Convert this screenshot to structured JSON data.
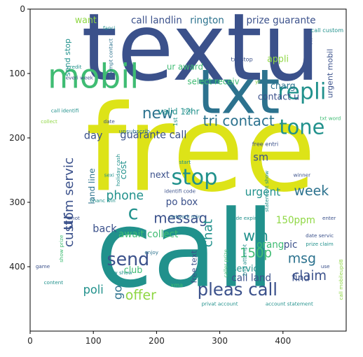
{
  "chart_data": {
    "type": "wordcloud",
    "xlim": [
      0,
      500
    ],
    "ylim": [
      500,
      0
    ],
    "x_ticks": [
      0,
      100,
      200,
      300,
      400
    ],
    "y_ticks": [
      0,
      100,
      200,
      300,
      400
    ],
    "colors": {
      "dark_purple": "#472a7a",
      "indigo": "#3b518b",
      "blue": "#2c728e",
      "teal": "#21918c",
      "green": "#3fbc73",
      "lime": "#8fd744",
      "yellow": "#dde318"
    },
    "words": [
      {
        "text": "textu",
        "x": 270,
        "y": 70,
        "size": 145,
        "color": "indigo",
        "rotate": 0
      },
      {
        "text": "free",
        "x": 270,
        "y": 230,
        "size": 185,
        "color": "yellow",
        "rotate": 0
      },
      {
        "text": "call",
        "x": 245,
        "y": 385,
        "size": 165,
        "color": "teal",
        "rotate": 0
      },
      {
        "text": "txt",
        "x": 330,
        "y": 135,
        "size": 95,
        "color": "blue",
        "rotate": 0
      },
      {
        "text": "mobil",
        "x": 100,
        "y": 108,
        "size": 52,
        "color": "green",
        "rotate": 0
      },
      {
        "text": "repli",
        "x": 430,
        "y": 130,
        "size": 35,
        "color": "teal",
        "rotate": 0
      },
      {
        "text": "tone",
        "x": 430,
        "y": 185,
        "size": 32,
        "color": "teal",
        "rotate": 0
      },
      {
        "text": "stop",
        "x": 260,
        "y": 263,
        "size": 34,
        "color": "teal",
        "rotate": 0
      },
      {
        "text": "new",
        "x": 202,
        "y": 163,
        "size": 24,
        "color": "blue",
        "rotate": 0
      },
      {
        "text": "tri contact",
        "x": 330,
        "y": 175,
        "size": 22,
        "color": "blue",
        "rotate": 0
      },
      {
        "text": "guarante call",
        "x": 195,
        "y": 196,
        "size": 16,
        "color": "indigo",
        "rotate": 0
      },
      {
        "text": "messag",
        "x": 238,
        "y": 326,
        "size": 22,
        "color": "indigo",
        "rotate": 0
      },
      {
        "text": "c",
        "x": 163,
        "y": 318,
        "size": 30,
        "color": "teal",
        "rotate": 0
      },
      {
        "text": "phone",
        "x": 150,
        "y": 290,
        "size": 19,
        "color": "teal",
        "rotate": 0
      },
      {
        "text": "send",
        "x": 155,
        "y": 390,
        "size": 28,
        "color": "indigo",
        "rotate": 0
      },
      {
        "text": "pleas call",
        "x": 328,
        "y": 437,
        "size": 27,
        "color": "indigo",
        "rotate": 0
      },
      {
        "text": "offer",
        "x": 175,
        "y": 445,
        "size": 21,
        "color": "lime",
        "rotate": 0
      },
      {
        "text": "poli",
        "x": 100,
        "y": 437,
        "size": 18,
        "color": "teal",
        "rotate": 0
      },
      {
        "text": "go",
        "x": 140,
        "y": 440,
        "size": 18,
        "color": "blue",
        "rotate": -90
      },
      {
        "text": "club",
        "x": 163,
        "y": 406,
        "size": 14,
        "color": "green",
        "rotate": 0
      },
      {
        "text": "ur",
        "x": 60,
        "y": 330,
        "size": 26,
        "color": "indigo",
        "rotate": -90
      },
      {
        "text": "custom servic",
        "x": 62,
        "y": 300,
        "size": 20,
        "color": "indigo",
        "rotate": -90
      },
      {
        "text": "land line",
        "x": 98,
        "y": 275,
        "size": 13,
        "color": "blue",
        "rotate": -90
      },
      {
        "text": "send stop",
        "x": 60,
        "y": 75,
        "size": 12,
        "color": "teal",
        "rotate": -90
      },
      {
        "text": "cost",
        "x": 148,
        "y": 250,
        "size": 14,
        "color": "teal",
        "rotate": -90
      },
      {
        "text": "day",
        "x": 100,
        "y": 197,
        "size": 16,
        "color": "indigo",
        "rotate": 0
      },
      {
        "text": "back",
        "x": 118,
        "y": 342,
        "size": 16,
        "color": "indigo",
        "rotate": 0
      },
      {
        "text": "await collect",
        "x": 187,
        "y": 350,
        "size": 15,
        "color": "green",
        "rotate": 0
      },
      {
        "text": "chat",
        "x": 282,
        "y": 348,
        "size": 20,
        "color": "teal",
        "rotate": -90
      },
      {
        "text": "win",
        "x": 357,
        "y": 353,
        "size": 23,
        "color": "teal",
        "rotate": 0
      },
      {
        "text": "150p",
        "x": 357,
        "y": 380,
        "size": 20,
        "color": "green",
        "rotate": 0
      },
      {
        "text": "msg",
        "x": 430,
        "y": 388,
        "size": 21,
        "color": "blue",
        "rotate": 0
      },
      {
        "text": "claim",
        "x": 442,
        "y": 415,
        "size": 20,
        "color": "indigo",
        "rotate": 0
      },
      {
        "text": "week",
        "x": 445,
        "y": 283,
        "size": 21,
        "color": "blue",
        "rotate": 0
      },
      {
        "text": "urgent",
        "x": 368,
        "y": 285,
        "size": 17,
        "color": "teal",
        "rotate": 0
      },
      {
        "text": "sm",
        "x": 365,
        "y": 231,
        "size": 16,
        "color": "indigo",
        "rotate": 0
      },
      {
        "text": "po box",
        "x": 240,
        "y": 300,
        "size": 15,
        "color": "indigo",
        "rotate": 0
      },
      {
        "text": "next",
        "x": 205,
        "y": 258,
        "size": 14,
        "color": "indigo",
        "rotate": 0
      },
      {
        "text": "150ppm",
        "x": 420,
        "y": 328,
        "size": 15,
        "color": "lime",
        "rotate": 0
      },
      {
        "text": "orang",
        "x": 380,
        "y": 366,
        "size": 15,
        "color": "green",
        "rotate": 0
      },
      {
        "text": "pic",
        "x": 412,
        "y": 366,
        "size": 15,
        "color": "indigo",
        "rotate": 0
      },
      {
        "text": "find",
        "x": 428,
        "y": 418,
        "size": 15,
        "color": "indigo",
        "rotate": 0
      },
      {
        "text": "servic",
        "x": 340,
        "y": 404,
        "size": 14,
        "color": "teal",
        "rotate": 0
      },
      {
        "text": "call land",
        "x": 350,
        "y": 418,
        "size": 15,
        "color": "indigo",
        "rotate": 0
      },
      {
        "text": "free text",
        "x": 260,
        "y": 400,
        "size": 12,
        "color": "indigo",
        "rotate": -90
      },
      {
        "text": "call landlin",
        "x": 200,
        "y": 18,
        "size": 15,
        "color": "indigo",
        "rotate": 0
      },
      {
        "text": "rington",
        "x": 280,
        "y": 18,
        "size": 15,
        "color": "blue",
        "rotate": 0
      },
      {
        "text": "prize guarante",
        "x": 397,
        "y": 18,
        "size": 15,
        "color": "indigo",
        "rotate": 0
      },
      {
        "text": "want",
        "x": 88,
        "y": 18,
        "size": 14,
        "color": "lime",
        "rotate": 0
      },
      {
        "text": "hi",
        "x": 443,
        "y": 50,
        "size": 12,
        "color": "indigo",
        "rotate": -90
      },
      {
        "text": "call custom",
        "x": 470,
        "y": 33,
        "size": 9,
        "color": "teal",
        "rotate": 0
      },
      {
        "text": "ur award",
        "x": 245,
        "y": 90,
        "size": 13,
        "color": "green",
        "rotate": 0
      },
      {
        "text": "appli",
        "x": 392,
        "y": 78,
        "size": 14,
        "color": "lime",
        "rotate": 0
      },
      {
        "text": "charg",
        "x": 400,
        "y": 120,
        "size": 14,
        "color": "blue",
        "rotate": 0
      },
      {
        "text": "contact u",
        "x": 393,
        "y": 137,
        "size": 14,
        "color": "indigo",
        "rotate": 0
      },
      {
        "text": "urgent mobil",
        "x": 475,
        "y": 100,
        "size": 12,
        "color": "indigo",
        "rotate": -90
      },
      {
        "text": "select receiv",
        "x": 290,
        "y": 113,
        "size": 13,
        "color": "green",
        "rotate": 0
      },
      {
        "text": "valid 12hr",
        "x": 235,
        "y": 160,
        "size": 13,
        "color": "teal",
        "rotate": 0
      },
      {
        "text": "txt stop",
        "x": 335,
        "y": 78,
        "size": 9,
        "color": "indigo",
        "rotate": 0
      },
      {
        "text": "fanci",
        "x": 125,
        "y": 30,
        "size": 8,
        "color": "teal",
        "rotate": 0
      },
      {
        "text": "credit",
        "x": 70,
        "y": 90,
        "size": 8,
        "color": "teal",
        "rotate": 0
      },
      {
        "text": "everi week",
        "x": 78,
        "y": 107,
        "size": 8,
        "color": "indigo",
        "rotate": 0
      },
      {
        "text": "attempt contact",
        "x": 128,
        "y": 78,
        "size": 8,
        "color": "blue",
        "rotate": -90
      },
      {
        "text": "call identifi",
        "x": 55,
        "y": 158,
        "size": 8,
        "color": "teal",
        "rotate": 0
      },
      {
        "text": "collect",
        "x": 30,
        "y": 175,
        "size": 8,
        "color": "lime",
        "rotate": 0
      },
      {
        "text": "date",
        "x": 125,
        "y": 175,
        "size": 8,
        "color": "indigo",
        "rotate": 0
      },
      {
        "text": "unsubscrib",
        "x": 165,
        "y": 190,
        "size": 9,
        "color": "blue",
        "rotate": 0
      },
      {
        "text": "1st",
        "x": 230,
        "y": 175,
        "size": 9,
        "color": "teal",
        "rotate": -90
      },
      {
        "text": "top",
        "x": 250,
        "y": 158,
        "size": 8,
        "color": "teal",
        "rotate": 0
      },
      {
        "text": "yr",
        "x": 360,
        "y": 113,
        "size": 8,
        "color": "lime",
        "rotate": 0
      },
      {
        "text": "txt word",
        "x": 475,
        "y": 170,
        "size": 8,
        "color": "green",
        "rotate": 0
      },
      {
        "text": "free entri",
        "x": 372,
        "y": 210,
        "size": 9,
        "color": "indigo",
        "rotate": 0
      },
      {
        "text": "start",
        "x": 245,
        "y": 238,
        "size": 8,
        "color": "teal",
        "rotate": 0
      },
      {
        "text": "sexi",
        "x": 125,
        "y": 258,
        "size": 8,
        "color": "teal",
        "rotate": 0
      },
      {
        "text": "holiday cash",
        "x": 140,
        "y": 250,
        "size": 8,
        "color": "teal",
        "rotate": -90
      },
      {
        "text": "winner",
        "x": 430,
        "y": 258,
        "size": 8,
        "color": "indigo",
        "rotate": 0
      },
      {
        "text": "statement show",
        "x": 375,
        "y": 283,
        "size": 8,
        "color": "teal",
        "rotate": -90
      },
      {
        "text": "chanc win",
        "x": 115,
        "y": 298,
        "size": 8,
        "color": "teal",
        "rotate": 0
      },
      {
        "text": "identifi code",
        "x": 237,
        "y": 283,
        "size": 8,
        "color": "indigo",
        "rotate": 0
      },
      {
        "text": "network min",
        "x": 245,
        "y": 323,
        "size": 8,
        "color": "blue",
        "rotate": 0
      },
      {
        "text": "hot",
        "x": 72,
        "y": 325,
        "size": 8,
        "color": "indigo",
        "rotate": 0
      },
      {
        "text": "code expir",
        "x": 337,
        "y": 325,
        "size": 8,
        "color": "teal",
        "rotate": 0
      },
      {
        "text": "enter",
        "x": 473,
        "y": 325,
        "size": 8,
        "color": "indigo",
        "rotate": 0
      },
      {
        "text": "show prize",
        "x": 50,
        "y": 372,
        "size": 8,
        "color": "green",
        "rotate": -90
      },
      {
        "text": "enjoy",
        "x": 192,
        "y": 378,
        "size": 8,
        "color": "blue",
        "rotate": 0
      },
      {
        "text": "caller prize",
        "x": 310,
        "y": 395,
        "size": 8,
        "color": "green",
        "rotate": -90
      },
      {
        "text": "2nd attempt",
        "x": 340,
        "y": 390,
        "size": 8,
        "color": "teal",
        "rotate": -90
      },
      {
        "text": "date servic",
        "x": 458,
        "y": 352,
        "size": 8,
        "color": "indigo",
        "rotate": 0
      },
      {
        "text": "prize claim",
        "x": 458,
        "y": 365,
        "size": 8,
        "color": "teal",
        "rotate": 0
      },
      {
        "text": "use",
        "x": 467,
        "y": 400,
        "size": 8,
        "color": "indigo",
        "rotate": 0
      },
      {
        "text": "call mobileupd8",
        "x": 492,
        "y": 420,
        "size": 8,
        "color": "lime",
        "rotate": -90
      },
      {
        "text": "game",
        "x": 20,
        "y": 400,
        "size": 8,
        "color": "indigo",
        "rotate": 0
      },
      {
        "text": "content",
        "x": 37,
        "y": 425,
        "size": 8,
        "color": "teal",
        "rotate": 0
      },
      {
        "text": "draw show",
        "x": 140,
        "y": 410,
        "size": 8,
        "color": "teal",
        "rotate": 0
      },
      {
        "text": "xma",
        "x": 232,
        "y": 429,
        "size": 9,
        "color": "green",
        "rotate": 0
      },
      {
        "text": "privat account",
        "x": 300,
        "y": 458,
        "size": 8,
        "color": "teal",
        "rotate": 0
      },
      {
        "text": "account statement",
        "x": 410,
        "y": 458,
        "size": 8,
        "color": "teal",
        "rotate": 0
      }
    ]
  }
}
